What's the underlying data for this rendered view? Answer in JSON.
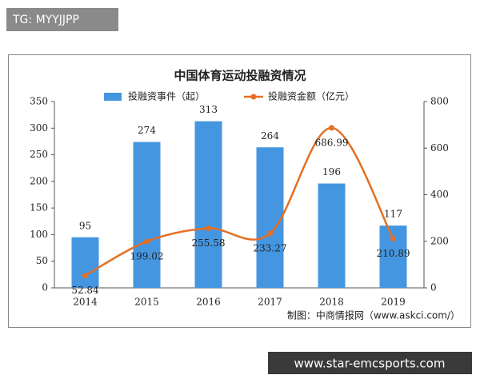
{
  "header_label": "TG: MYYJJPP",
  "footer_url": "www.star-emcsports.com",
  "chart_data": {
    "type": "bar",
    "title": "中国体育运动投融资情况",
    "categories": [
      "2014",
      "2015",
      "2016",
      "2017",
      "2018",
      "2019"
    ],
    "series": [
      {
        "name": "投融资事件（起）",
        "type": "bar",
        "color": "#4596e0",
        "values": [
          95,
          274,
          313,
          264,
          196,
          117
        ]
      },
      {
        "name": "投融资金额（亿元）",
        "type": "line",
        "axis": "y2",
        "color": "#e46f24",
        "values": [
          52.84,
          199.02,
          255.58,
          233.27,
          686.99,
          210.89
        ]
      }
    ],
    "ylim": [
      0,
      350
    ],
    "yticks": [
      0,
      50,
      100,
      150,
      200,
      250,
      300,
      350
    ],
    "y2lim": [
      0,
      800
    ],
    "y2ticks": [
      0,
      200,
      400,
      600,
      800
    ],
    "grid": false,
    "legend": "top",
    "source": "制图：中商情报网（www.askci.com/）"
  }
}
